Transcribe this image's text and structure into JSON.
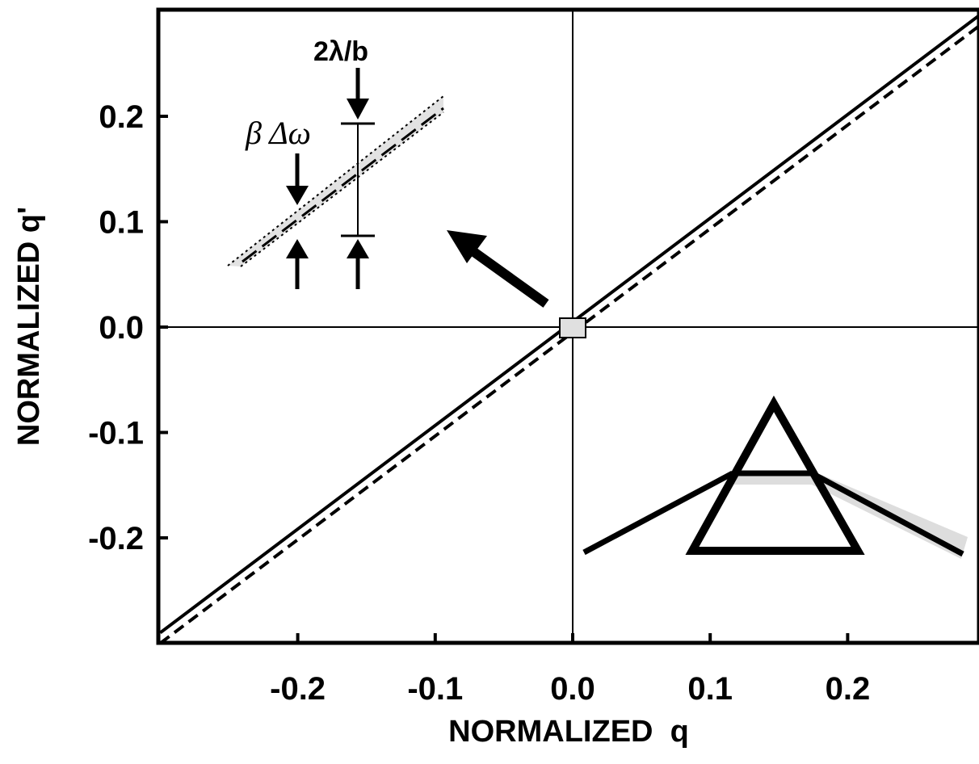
{
  "chart_data": {
    "type": "line",
    "title": "",
    "xlabel": "NORMALIZED  q",
    "ylabel": "NORMALIZED q'",
    "xlim": [
      -0.3,
      0.3
    ],
    "ylim": [
      -0.3,
      0.3
    ],
    "x_ticks": [
      -0.2,
      -0.1,
      0.0,
      0.1,
      0.2
    ],
    "y_ticks": [
      -0.2,
      -0.1,
      0.0,
      0.1,
      0.2
    ],
    "x_tick_labels": [
      "-0.2",
      "-0.1",
      "0.0",
      "0.1",
      "0.2"
    ],
    "y_tick_labels": [
      "-0.2",
      "-0.1",
      "0.0",
      "0.1",
      "0.2"
    ],
    "grid": false,
    "legend": "none",
    "series": [
      {
        "style": "solid",
        "x": [
          -0.3,
          0.3
        ],
        "y": [
          -0.29,
          0.3
        ]
      },
      {
        "style": "dashed",
        "x": [
          -0.3,
          0.3
        ],
        "y": [
          -0.3,
          0.29
        ]
      }
    ],
    "annotations": {
      "inset_label_width": "β Δω",
      "inset_label_spacing": "2λ/b",
      "zoom_box_center": [
        0.0,
        0.0
      ]
    }
  }
}
